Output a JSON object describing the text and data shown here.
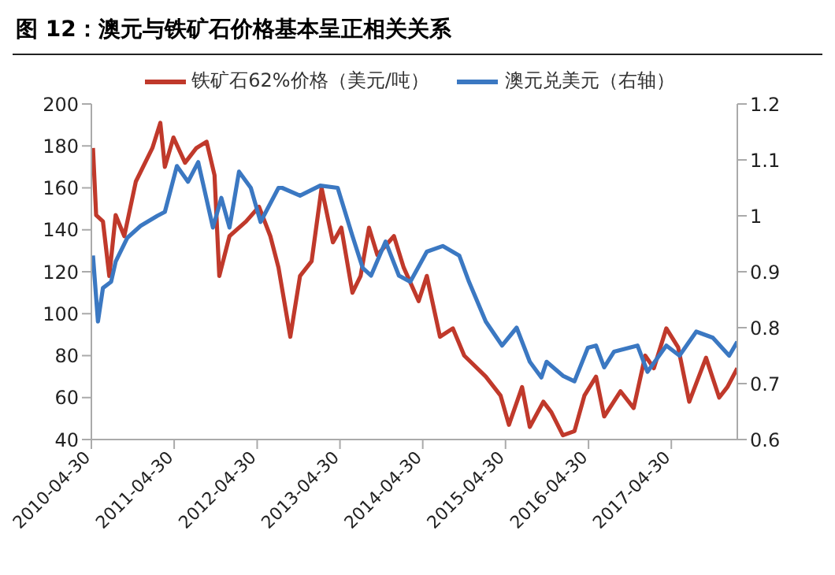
{
  "chart_data": {
    "type": "line",
    "title": "图 12：澳元与铁矿石价格基本呈正相关关系",
    "legend": "top",
    "grid": false,
    "marker": "none",
    "line_style": "solid",
    "xlim": [
      "2010-04-30",
      "2018-02-15"
    ],
    "xticks": [
      "2010-04-30",
      "2011-04-30",
      "2012-04-30",
      "2013-04-30",
      "2014-04-30",
      "2015-04-30",
      "2016-04-30",
      "2017-04-30"
    ],
    "ylim": [
      40,
      200
    ],
    "yticks": [
      40,
      60,
      80,
      100,
      120,
      140,
      160,
      180,
      200
    ],
    "y2lim": [
      0.6,
      1.2
    ],
    "y2ticks": [
      0.6,
      0.7,
      0.8,
      0.9,
      1,
      1.1,
      1.2
    ],
    "series": [
      {
        "name": "铁矿石62%价格（美元/吨）",
        "color": "#c0392b",
        "x": [
          "2010-05-07",
          "2010-05-21",
          "2010-06-20",
          "2010-07-18",
          "2010-08-15",
          "2010-09-22",
          "2010-11-12",
          "2011-01-24",
          "2011-02-28",
          "2011-03-20",
          "2011-04-27",
          "2011-06-17",
          "2011-08-06",
          "2011-09-20",
          "2011-10-25",
          "2011-11-15",
          "2011-12-30",
          "2012-03-12",
          "2012-05-08",
          "2012-06-27",
          "2012-08-02",
          "2012-09-23",
          "2012-11-05",
          "2012-12-26",
          "2013-02-08",
          "2013-03-30",
          "2013-05-06",
          "2013-06-24",
          "2013-07-30",
          "2013-09-05",
          "2013-10-12",
          "2013-12-24",
          "2014-02-05",
          "2014-04-12",
          "2014-05-18",
          "2014-07-15",
          "2014-09-10",
          "2014-10-30",
          "2015-02-02",
          "2015-04-08",
          "2015-05-15",
          "2015-07-12",
          "2015-08-15",
          "2015-10-14",
          "2015-11-18",
          "2016-01-08",
          "2016-02-28",
          "2016-04-12",
          "2016-06-02",
          "2016-07-08",
          "2016-09-18",
          "2016-11-15",
          "2017-01-05",
          "2017-02-12",
          "2017-04-08",
          "2017-05-30",
          "2017-07-18",
          "2017-09-30",
          "2017-11-27",
          "2018-01-02",
          "2018-02-15"
        ],
        "values": [
          179,
          147,
          144,
          118,
          147,
          137,
          163,
          179,
          191,
          170,
          184,
          172,
          179,
          182,
          166,
          118,
          137,
          144,
          151,
          137,
          122,
          89,
          118,
          125,
          160,
          134,
          141,
          110,
          118,
          141,
          128,
          137,
          122,
          106,
          118,
          89,
          93,
          80,
          70,
          61,
          47,
          65,
          46,
          58,
          53,
          42,
          44,
          61,
          70,
          51,
          63,
          55,
          80,
          74,
          93,
          84,
          58,
          79,
          60,
          65,
          74
        ]
      },
      {
        "name": "澳元兑美元（右轴）",
        "color": "#3b78c2",
        "axis": "y2",
        "x": [
          "2010-05-07",
          "2010-05-29",
          "2010-06-20",
          "2010-07-26",
          "2010-08-15",
          "2010-10-06",
          "2010-12-03",
          "2011-02-15",
          "2011-03-20",
          "2011-05-12",
          "2011-06-30",
          "2011-08-14",
          "2011-10-18",
          "2011-11-24",
          "2011-12-30",
          "2012-02-10",
          "2012-04-02",
          "2012-05-15",
          "2012-08-02",
          "2012-08-18",
          "2012-11-05",
          "2013-02-02",
          "2013-04-20",
          "2013-06-24",
          "2013-08-08",
          "2013-09-14",
          "2013-11-17",
          "2014-01-15",
          "2014-03-06",
          "2014-05-18",
          "2014-07-27",
          "2014-10-08",
          "2014-11-20",
          "2015-02-02",
          "2015-04-15",
          "2015-06-18",
          "2015-08-15",
          "2015-10-05",
          "2015-10-28",
          "2016-01-08",
          "2016-02-28",
          "2016-04-27",
          "2016-06-02",
          "2016-07-08",
          "2016-08-20",
          "2016-12-02",
          "2017-01-15",
          "2017-04-08",
          "2017-06-05",
          "2017-08-18",
          "2017-10-30",
          "2018-01-10",
          "2018-02-15"
        ],
        "values": [
          0.929,
          0.811,
          0.871,
          0.882,
          0.918,
          0.961,
          0.982,
          1.0,
          1.007,
          1.089,
          1.061,
          1.096,
          0.979,
          1.032,
          0.979,
          1.079,
          1.05,
          0.989,
          1.05,
          1.05,
          1.036,
          1.054,
          1.05,
          0.964,
          0.907,
          0.893,
          0.954,
          0.893,
          0.882,
          0.936,
          0.946,
          0.929,
          0.882,
          0.811,
          0.768,
          0.8,
          0.739,
          0.711,
          0.739,
          0.714,
          0.704,
          0.764,
          0.768,
          0.729,
          0.757,
          0.768,
          0.721,
          0.768,
          0.75,
          0.793,
          0.782,
          0.75,
          0.775
        ]
      }
    ]
  }
}
